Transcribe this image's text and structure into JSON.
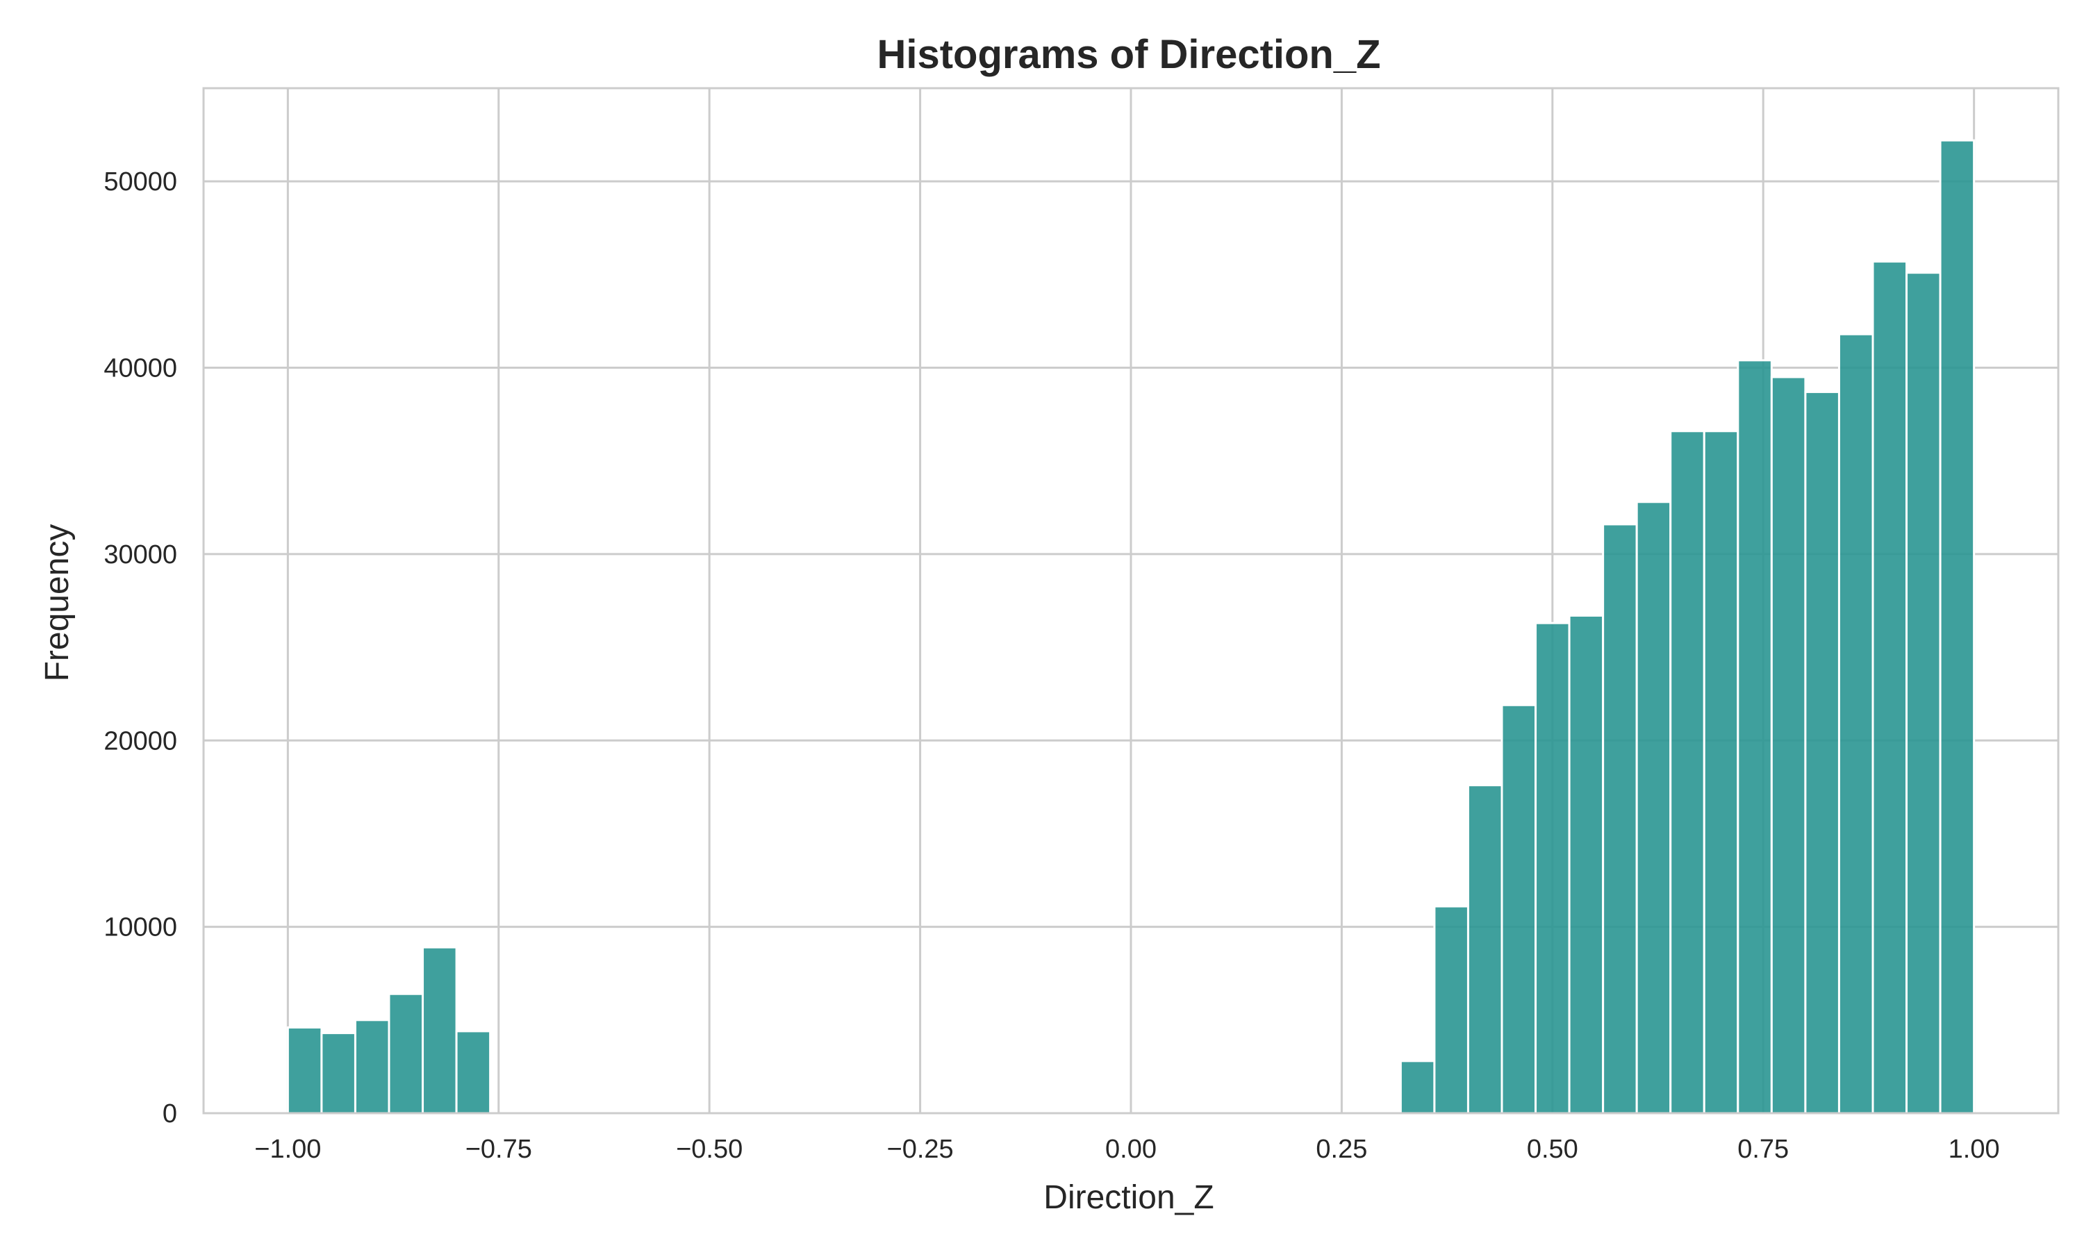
{
  "chart_data": {
    "type": "bar",
    "title": "Histograms of Direction_Z",
    "xlabel": "Direction_Z",
    "ylabel": "Frequency",
    "xlim": [
      -1.1,
      1.1
    ],
    "ylim": [
      0,
      55000
    ],
    "xticks": [
      -1.0,
      -0.75,
      -0.5,
      -0.25,
      0.0,
      0.25,
      0.5,
      0.75,
      1.0
    ],
    "xtick_labels": [
      "−1.00",
      "−0.75",
      "−0.50",
      "−0.25",
      "0.00",
      "0.25",
      "0.50",
      "0.75",
      "1.00"
    ],
    "yticks": [
      0,
      10000,
      20000,
      30000,
      40000,
      50000
    ],
    "ytick_labels": [
      "0",
      "10000",
      "20000",
      "30000",
      "40000",
      "50000"
    ],
    "grid": true,
    "color": "#2a9692",
    "bin_width": 0.04,
    "bins": [
      {
        "start": -1.0,
        "value": 4600
      },
      {
        "start": -0.96,
        "value": 4300
      },
      {
        "start": -0.92,
        "value": 5000
      },
      {
        "start": -0.88,
        "value": 6400
      },
      {
        "start": -0.84,
        "value": 8900
      },
      {
        "start": -0.8,
        "value": 4400
      },
      {
        "start": 0.32,
        "value": 2800
      },
      {
        "start": 0.36,
        "value": 11100
      },
      {
        "start": 0.4,
        "value": 17600
      },
      {
        "start": 0.44,
        "value": 21900
      },
      {
        "start": 0.48,
        "value": 26300
      },
      {
        "start": 0.52,
        "value": 26700
      },
      {
        "start": 0.56,
        "value": 31600
      },
      {
        "start": 0.6,
        "value": 32800
      },
      {
        "start": 0.64,
        "value": 36600
      },
      {
        "start": 0.68,
        "value": 36600
      },
      {
        "start": 0.72,
        "value": 40400
      },
      {
        "start": 0.76,
        "value": 39500
      },
      {
        "start": 0.8,
        "value": 38700
      },
      {
        "start": 0.84,
        "value": 41800
      },
      {
        "start": 0.88,
        "value": 45700
      },
      {
        "start": 0.92,
        "value": 45100
      },
      {
        "start": 0.96,
        "value": 52200
      }
    ]
  }
}
